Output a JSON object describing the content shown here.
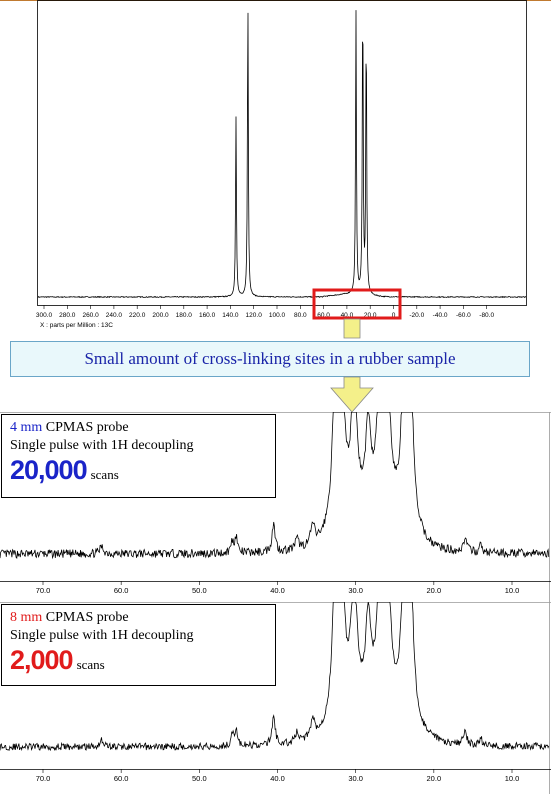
{
  "top_spectrum": {
    "x_axis_label": "X : parts per Million : 13C",
    "ticks": [
      "300.0",
      "280.0",
      "260.0",
      "240.0",
      "220.0",
      "200.0",
      "180.0",
      "160.0",
      "140.0",
      "120.0",
      "100.0",
      "80.0",
      "60.0",
      "40.0",
      "20.0",
      "0",
      "-20.0",
      "-40.0",
      "-60.0",
      "-80.0"
    ],
    "highlight_color": "#e11b1b"
  },
  "banner": {
    "text": "Small amount of cross-linking sites in a rubber sample",
    "text_color": "#1a24a8",
    "background": "#e9f8fb"
  },
  "arrow_color": "#f4f08a",
  "panel_4mm": {
    "size_text": "4 mm",
    "size_color": "#1a24c8",
    "probe_text": " CPMAS probe",
    "method_text": "Single pulse with 1H decoupling",
    "scans_count": "20,000",
    "scans_color": "#1a24c8",
    "scans_unit": "scans",
    "ticks": [
      "70.0",
      "60.0",
      "50.0",
      "40.0",
      "30.0",
      "20.0",
      "10.0"
    ]
  },
  "panel_8mm": {
    "size_text": "8 mm",
    "size_color": "#e11b1b",
    "probe_text": " CPMAS probe",
    "method_text": "Single pulse with 1H decoupling",
    "scans_count": "2,000",
    "scans_color": "#e11b1b",
    "scans_unit": "scans",
    "ticks": [
      "70.0",
      "60.0",
      "50.0",
      "40.0",
      "30.0",
      "20.0",
      "10.0"
    ]
  },
  "chart_data": [
    {
      "type": "line",
      "xlabel": "X : parts per Million : 13C",
      "xlim": [
        300,
        -100
      ],
      "x_reversed": true,
      "peaks_ppm": [
        {
          "x": 135.2,
          "height": 0.6
        },
        {
          "x": 125.0,
          "height": 1.0
        },
        {
          "x": 32.2,
          "height": 0.94
        },
        {
          "x": 26.4,
          "height": 1.0
        },
        {
          "x": 23.4,
          "height": 0.9
        }
      ],
      "highlighted_region_ppm": [
        80,
        -10
      ]
    },
    {
      "type": "line",
      "series": [
        {
          "name": "4 mm CPMAS probe, 20,000 scans",
          "x_range": [
            75,
            5
          ]
        }
      ],
      "xlim": [
        75,
        5
      ],
      "x_reversed": true
    },
    {
      "type": "line",
      "series": [
        {
          "name": "8 mm CPMAS probe, 2,000 scans",
          "x_range": [
            75,
            5
          ]
        }
      ],
      "xlim": [
        75,
        5
      ],
      "x_reversed": true
    }
  ]
}
